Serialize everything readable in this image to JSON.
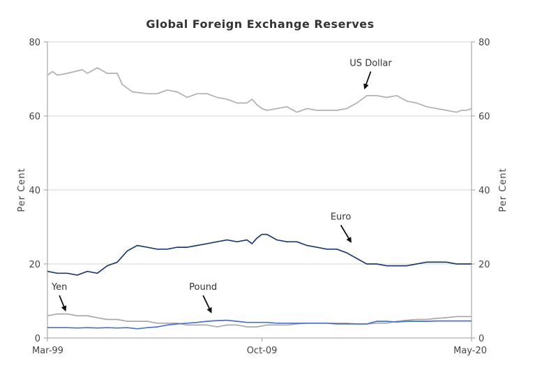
{
  "chart_data": {
    "type": "line",
    "title": "Global Foreign Exchange Reserves",
    "ylabel_left": "Per Cent",
    "ylabel_right": "Per Cent",
    "ylim": [
      0,
      80
    ],
    "yticks": [
      0,
      20,
      40,
      60,
      80
    ],
    "y_tick_labels": [
      "0",
      "20",
      "40",
      "60",
      "80"
    ],
    "grid": true,
    "x_range": [
      1999.0,
      2020.25
    ],
    "x_ticks": [
      {
        "x": 1999.0,
        "label": "Mar-99"
      },
      {
        "x": 2009.75,
        "label": "Oct-09"
      },
      {
        "x": 2020.25,
        "label": "May-20"
      }
    ],
    "series": [
      {
        "name": "US Dollar",
        "color": "#b0b0b0",
        "points": [
          [
            1999.0,
            71.0
          ],
          [
            1999.25,
            72.0
          ],
          [
            1999.5,
            71.0
          ],
          [
            2000.0,
            71.5
          ],
          [
            2000.75,
            72.5
          ],
          [
            2001.0,
            71.5
          ],
          [
            2001.5,
            73.0
          ],
          [
            2002.0,
            71.5
          ],
          [
            2002.5,
            71.5
          ],
          [
            2002.75,
            68.5
          ],
          [
            2003.25,
            66.5
          ],
          [
            2004.0,
            66.0
          ],
          [
            2004.5,
            66.0
          ],
          [
            2005.0,
            67.0
          ],
          [
            2005.5,
            66.5
          ],
          [
            2006.0,
            65.0
          ],
          [
            2006.5,
            66.0
          ],
          [
            2007.0,
            66.0
          ],
          [
            2007.5,
            65.0
          ],
          [
            2008.0,
            64.5
          ],
          [
            2008.5,
            63.5
          ],
          [
            2009.0,
            63.5
          ],
          [
            2009.25,
            64.5
          ],
          [
            2009.5,
            63.0
          ],
          [
            2009.75,
            62.0
          ],
          [
            2010.0,
            61.5
          ],
          [
            2010.5,
            62.0
          ],
          [
            2011.0,
            62.5
          ],
          [
            2011.5,
            61.0
          ],
          [
            2012.0,
            62.0
          ],
          [
            2012.5,
            61.5
          ],
          [
            2013.0,
            61.5
          ],
          [
            2013.5,
            61.5
          ],
          [
            2014.0,
            62.0
          ],
          [
            2014.5,
            63.5
          ],
          [
            2015.0,
            65.5
          ],
          [
            2015.5,
            65.5
          ],
          [
            2016.0,
            65.0
          ],
          [
            2016.5,
            65.5
          ],
          [
            2017.0,
            64.0
          ],
          [
            2017.5,
            63.5
          ],
          [
            2018.0,
            62.5
          ],
          [
            2018.5,
            62.0
          ],
          [
            2019.0,
            61.5
          ],
          [
            2019.5,
            61.0
          ],
          [
            2019.75,
            61.5
          ],
          [
            2020.0,
            61.5
          ],
          [
            2020.25,
            62.0
          ]
        ]
      },
      {
        "name": "Euro",
        "color": "#1f3a6e",
        "points": [
          [
            1999.0,
            18.0
          ],
          [
            1999.5,
            17.5
          ],
          [
            2000.0,
            17.5
          ],
          [
            2000.5,
            17.0
          ],
          [
            2001.0,
            18.0
          ],
          [
            2001.5,
            17.5
          ],
          [
            2002.0,
            19.5
          ],
          [
            2002.5,
            20.5
          ],
          [
            2003.0,
            23.5
          ],
          [
            2003.5,
            25.0
          ],
          [
            2004.0,
            24.5
          ],
          [
            2004.5,
            24.0
          ],
          [
            2005.0,
            24.0
          ],
          [
            2005.5,
            24.5
          ],
          [
            2006.0,
            24.5
          ],
          [
            2006.5,
            25.0
          ],
          [
            2007.0,
            25.5
          ],
          [
            2007.5,
            26.0
          ],
          [
            2008.0,
            26.5
          ],
          [
            2008.5,
            26.0
          ],
          [
            2009.0,
            26.5
          ],
          [
            2009.25,
            25.5
          ],
          [
            2009.5,
            27.0
          ],
          [
            2009.75,
            28.0
          ],
          [
            2010.0,
            28.0
          ],
          [
            2010.5,
            26.5
          ],
          [
            2011.0,
            26.0
          ],
          [
            2011.5,
            26.0
          ],
          [
            2012.0,
            25.0
          ],
          [
            2012.5,
            24.5
          ],
          [
            2013.0,
            24.0
          ],
          [
            2013.5,
            24.0
          ],
          [
            2014.0,
            23.0
          ],
          [
            2014.5,
            21.5
          ],
          [
            2015.0,
            20.0
          ],
          [
            2015.5,
            20.0
          ],
          [
            2016.0,
            19.5
          ],
          [
            2016.5,
            19.5
          ],
          [
            2017.0,
            19.5
          ],
          [
            2017.5,
            20.0
          ],
          [
            2018.0,
            20.5
          ],
          [
            2018.5,
            20.5
          ],
          [
            2019.0,
            20.5
          ],
          [
            2019.5,
            20.0
          ],
          [
            2020.0,
            20.0
          ],
          [
            2020.25,
            20.0
          ]
        ]
      },
      {
        "name": "Yen",
        "color": "#a8a8a8",
        "points": [
          [
            1999.0,
            6.0
          ],
          [
            1999.5,
            6.5
          ],
          [
            2000.0,
            6.5
          ],
          [
            2000.5,
            6.0
          ],
          [
            2001.0,
            6.0
          ],
          [
            2001.5,
            5.5
          ],
          [
            2002.0,
            5.0
          ],
          [
            2002.5,
            5.0
          ],
          [
            2003.0,
            4.5
          ],
          [
            2003.5,
            4.5
          ],
          [
            2004.0,
            4.5
          ],
          [
            2004.5,
            4.0
          ],
          [
            2005.0,
            4.0
          ],
          [
            2005.5,
            4.0
          ],
          [
            2006.0,
            3.5
          ],
          [
            2006.5,
            3.5
          ],
          [
            2007.0,
            3.5
          ],
          [
            2007.5,
            3.0
          ],
          [
            2008.0,
            3.5
          ],
          [
            2008.5,
            3.5
          ],
          [
            2009.0,
            3.0
          ],
          [
            2009.5,
            3.0
          ],
          [
            2010.0,
            3.5
          ],
          [
            2010.5,
            3.5
          ],
          [
            2011.0,
            3.5
          ],
          [
            2011.5,
            3.8
          ],
          [
            2012.0,
            4.0
          ],
          [
            2012.5,
            4.0
          ],
          [
            2013.0,
            4.0
          ],
          [
            2013.5,
            4.0
          ],
          [
            2014.0,
            4.0
          ],
          [
            2014.5,
            3.8
          ],
          [
            2015.0,
            3.8
          ],
          [
            2015.5,
            4.0
          ],
          [
            2016.0,
            4.0
          ],
          [
            2016.5,
            4.5
          ],
          [
            2017.0,
            4.8
          ],
          [
            2017.5,
            5.0
          ],
          [
            2018.0,
            5.0
          ],
          [
            2018.5,
            5.3
          ],
          [
            2019.0,
            5.5
          ],
          [
            2019.5,
            5.8
          ],
          [
            2020.0,
            5.8
          ],
          [
            2020.25,
            5.8
          ]
        ]
      },
      {
        "name": "Pound",
        "color": "#4a72c4",
        "points": [
          [
            1999.0,
            2.8
          ],
          [
            1999.5,
            2.8
          ],
          [
            2000.0,
            2.8
          ],
          [
            2000.5,
            2.7
          ],
          [
            2001.0,
            2.8
          ],
          [
            2001.5,
            2.7
          ],
          [
            2002.0,
            2.8
          ],
          [
            2002.5,
            2.7
          ],
          [
            2003.0,
            2.8
          ],
          [
            2003.5,
            2.5
          ],
          [
            2004.0,
            2.8
          ],
          [
            2004.5,
            3.0
          ],
          [
            2005.0,
            3.5
          ],
          [
            2005.5,
            3.8
          ],
          [
            2006.0,
            4.0
          ],
          [
            2006.5,
            4.2
          ],
          [
            2007.0,
            4.5
          ],
          [
            2007.5,
            4.7
          ],
          [
            2008.0,
            4.8
          ],
          [
            2008.5,
            4.5
          ],
          [
            2009.0,
            4.2
          ],
          [
            2009.5,
            4.2
          ],
          [
            2010.0,
            4.2
          ],
          [
            2010.5,
            4.0
          ],
          [
            2011.0,
            4.0
          ],
          [
            2011.5,
            4.0
          ],
          [
            2012.0,
            4.0
          ],
          [
            2012.5,
            4.0
          ],
          [
            2013.0,
            4.0
          ],
          [
            2013.5,
            3.8
          ],
          [
            2014.0,
            3.8
          ],
          [
            2014.5,
            3.8
          ],
          [
            2015.0,
            3.8
          ],
          [
            2015.5,
            4.5
          ],
          [
            2016.0,
            4.5
          ],
          [
            2016.5,
            4.3
          ],
          [
            2017.0,
            4.5
          ],
          [
            2017.5,
            4.5
          ],
          [
            2018.0,
            4.5
          ],
          [
            2018.5,
            4.6
          ],
          [
            2019.0,
            4.6
          ],
          [
            2019.5,
            4.6
          ],
          [
            2020.0,
            4.6
          ],
          [
            2020.25,
            4.6
          ]
        ]
      }
    ],
    "annotations": [
      {
        "text": "US Dollar",
        "arrow_from": [
          2015.2,
          72.0
        ],
        "arrow_to": [
          2014.9,
          67.5
        ]
      },
      {
        "text": "Euro",
        "arrow_from": [
          2013.7,
          30.5
        ],
        "arrow_to": [
          2014.2,
          26.0
        ]
      },
      {
        "text": "Yen",
        "arrow_from": [
          1999.6,
          11.5
        ],
        "arrow_to": [
          1999.9,
          7.5
        ]
      },
      {
        "text": "Pound",
        "arrow_from": [
          2006.8,
          11.5
        ],
        "arrow_to": [
          2007.2,
          7.0
        ]
      }
    ]
  }
}
